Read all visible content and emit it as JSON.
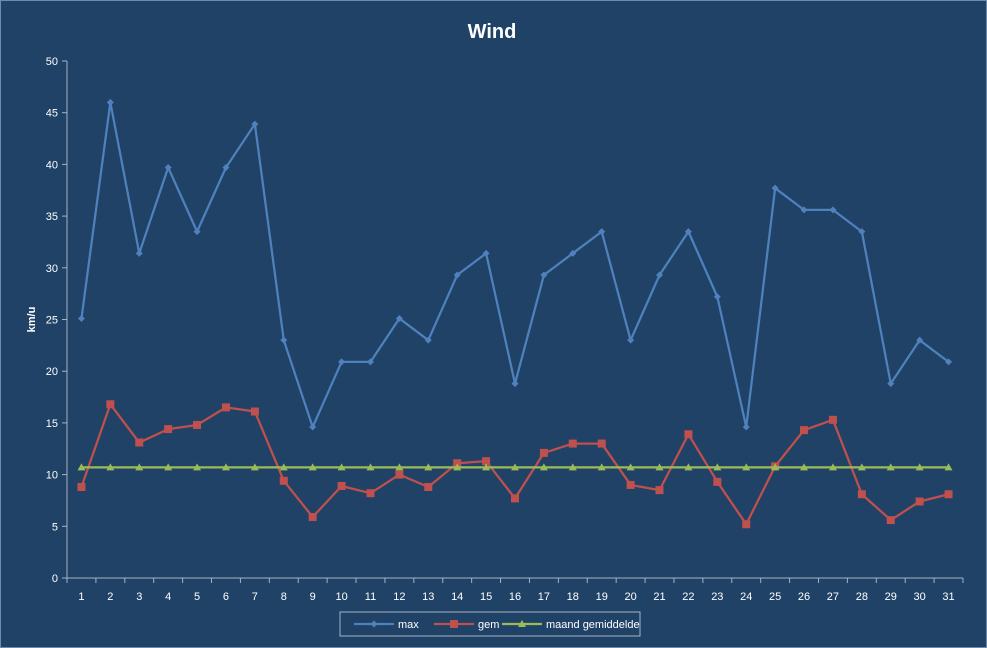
{
  "chart_data": {
    "type": "line",
    "title": "Wind",
    "xlabel": "",
    "ylabel": "km/u",
    "ylim": [
      0,
      50
    ],
    "yticks": [
      "0",
      "5",
      "10",
      "15",
      "20",
      "25",
      "30",
      "35",
      "40",
      "45",
      "50"
    ],
    "categories": [
      "1",
      "2",
      "3",
      "4",
      "5",
      "6",
      "7",
      "8",
      "9",
      "10",
      "11",
      "12",
      "13",
      "14",
      "15",
      "16",
      "17",
      "18",
      "19",
      "20",
      "21",
      "22",
      "23",
      "24",
      "25",
      "26",
      "27",
      "28",
      "29",
      "30",
      "31"
    ],
    "legend_position": "bottom",
    "grid": false,
    "series": [
      {
        "name": "max",
        "color": "#4f81bd",
        "marker": "diamond",
        "values": [
          25.1,
          46.0,
          31.4,
          39.7,
          33.5,
          39.7,
          43.9,
          23.0,
          14.6,
          20.9,
          20.9,
          25.1,
          23.0,
          29.3,
          31.4,
          18.8,
          29.3,
          31.4,
          33.5,
          23.0,
          29.3,
          33.5,
          27.2,
          14.6,
          37.7,
          35.6,
          35.6,
          33.5,
          18.8,
          23.0,
          20.9
        ]
      },
      {
        "name": "gem",
        "color": "#c0504d",
        "marker": "square",
        "values": [
          8.8,
          16.8,
          13.1,
          14.4,
          14.8,
          16.5,
          16.1,
          9.4,
          5.9,
          8.9,
          8.2,
          10.0,
          8.8,
          11.1,
          11.3,
          7.7,
          12.1,
          13.0,
          13.0,
          9.0,
          8.5,
          13.9,
          9.3,
          5.2,
          10.8,
          14.3,
          15.3,
          8.1,
          5.6,
          7.4,
          8.1
        ]
      },
      {
        "name": "maand gemiddelde",
        "color": "#9bbb59",
        "marker": "triangle",
        "values": [
          10.7,
          10.7,
          10.7,
          10.7,
          10.7,
          10.7,
          10.7,
          10.7,
          10.7,
          10.7,
          10.7,
          10.7,
          10.7,
          10.7,
          10.7,
          10.7,
          10.7,
          10.7,
          10.7,
          10.7,
          10.7,
          10.7,
          10.7,
          10.7,
          10.7,
          10.7,
          10.7,
          10.7,
          10.7,
          10.7,
          10.7
        ]
      }
    ]
  }
}
